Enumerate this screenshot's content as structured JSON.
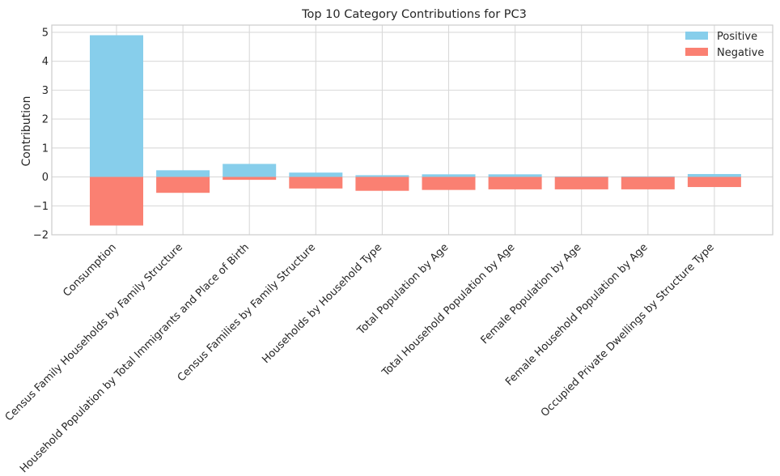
{
  "chart_data": {
    "type": "bar",
    "title": "Top 10 Category Contributions for PC3",
    "xlabel": "",
    "ylabel": "Contribution",
    "ylim": [
      -2,
      5.25
    ],
    "yticks": [
      -2,
      -1,
      0,
      1,
      2,
      3,
      4,
      5
    ],
    "ytick_labels": [
      "−2",
      "−1",
      "0",
      "1",
      "2",
      "3",
      "4",
      "5"
    ],
    "grid": true,
    "legend_position": "top-right",
    "categories": [
      "Consumption",
      "Census Family Households by Family Structure",
      "Household Population by Total Immigrants and Place of Birth",
      "Census Families by Family Structure",
      "Households by Household Type",
      "Total Population by Age",
      "Total Household Population by Age",
      "Female Population by Age",
      "Female Household Population by Age",
      "Occupied Private Dwellings by Structure Type"
    ],
    "series": [
      {
        "name": "Positive",
        "color": "#87CEEB",
        "values": [
          4.9,
          0.23,
          0.45,
          0.15,
          0.06,
          0.09,
          0.09,
          0.02,
          0.02,
          0.1
        ]
      },
      {
        "name": "Negative",
        "color": "#FA8072",
        "values": [
          -1.68,
          -0.55,
          -0.1,
          -0.4,
          -0.48,
          -0.45,
          -0.43,
          -0.43,
          -0.43,
          -0.35
        ]
      }
    ]
  }
}
